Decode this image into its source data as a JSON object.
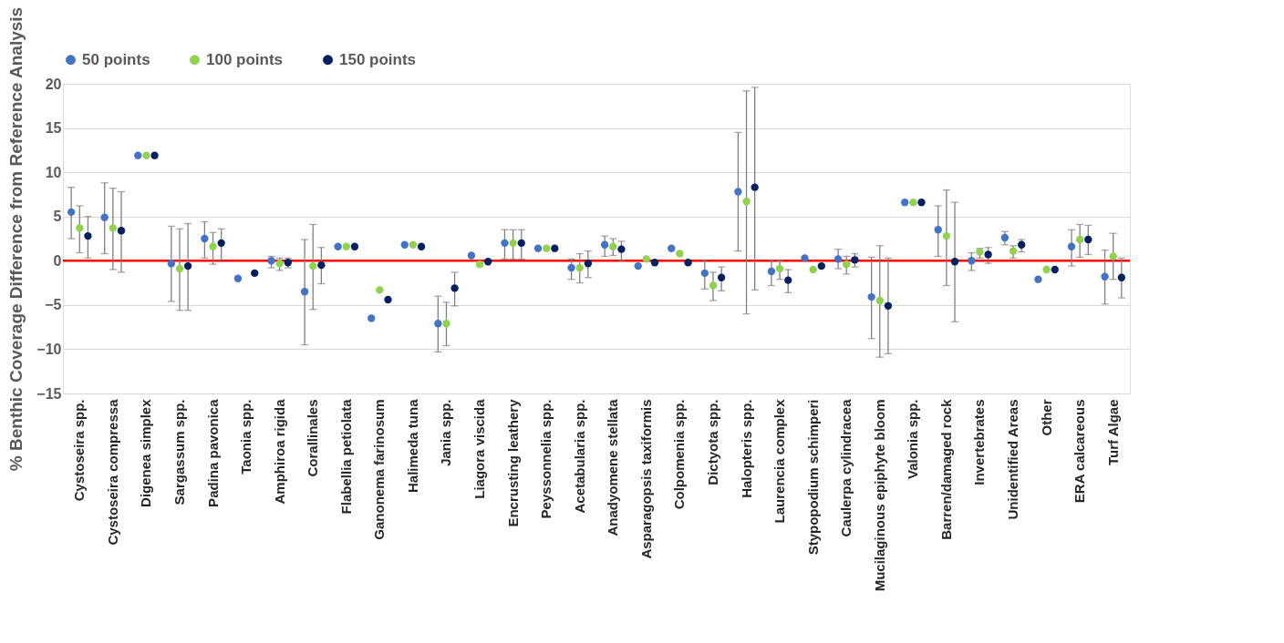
{
  "chart_data": {
    "type": "scatter",
    "ylabel": "% Benthic Coverage Difference from Reference Analysis",
    "categories": [
      "Cystoseira spp.",
      "Cystoseira compressa",
      "Digenea simplex",
      "Sargassum spp.",
      "Padina pavonica",
      "Taonia spp.",
      "Amphiroa rigida",
      "Corallinales",
      "Flabellia petiolata",
      "Ganonema farinosum",
      "Halimeda tuna",
      "Jania spp.",
      "Liagora viscida",
      "Encrusting leathery",
      "Peyssonnelia spp.",
      "Acetabularia spp.",
      "Anadyomene stellata",
      "Asparagopsis taxiformis",
      "Colpomenia spp.",
      "Dictyota spp.",
      "Halopteris spp.",
      "Laurencia complex",
      "Stypopodium schimperi",
      "Caulerpa cylindracea",
      "Mucilaginous epiphyte bloom",
      "Valonia spp.",
      "Barren/damaged rock",
      "Invertebrates",
      "Unidentified Areas",
      "Other",
      "ERA calcareous",
      "Turf Algae"
    ],
    "series": [
      {
        "name": "50 points",
        "color": "#4472c4",
        "values": [
          5.5,
          4.9,
          11.9,
          -0.3,
          2.5,
          -2.0,
          0.0,
          -3.5,
          1.6,
          -6.5,
          1.8,
          -7.1,
          0.6,
          2.0,
          1.4,
          -0.8,
          1.8,
          -0.6,
          1.4,
          -1.4,
          7.8,
          -1.2,
          0.3,
          0.2,
          -4.1,
          6.6,
          3.5,
          0.0,
          2.6,
          -2.1,
          1.6,
          -1.8
        ],
        "errors": [
          [
            2.5,
            8.3
          ],
          [
            0.8,
            8.8
          ],
          null,
          [
            -4.6,
            3.9
          ],
          [
            0.3,
            4.4
          ],
          null,
          [
            -0.8,
            0.5
          ],
          [
            -9.5,
            2.4
          ],
          null,
          null,
          null,
          [
            -10.3,
            -4.0
          ],
          null,
          [
            0.2,
            3.5
          ],
          null,
          [
            -2.1,
            0.2
          ],
          [
            0.5,
            2.8
          ],
          null,
          null,
          [
            -3.2,
            0.1
          ],
          [
            1.1,
            14.5
          ],
          [
            -2.8,
            0.1
          ],
          null,
          [
            -0.9,
            1.3
          ],
          [
            -8.8,
            0.4
          ],
          null,
          [
            0.5,
            6.2
          ],
          [
            -1.1,
            0.9
          ],
          [
            1.8,
            3.3
          ],
          null,
          [
            -0.6,
            3.5
          ],
          [
            -4.9,
            1.2
          ]
        ]
      },
      {
        "name": "100 points",
        "color": "#92d050",
        "values": [
          3.7,
          3.7,
          11.9,
          -0.9,
          1.6,
          null,
          -0.3,
          -0.6,
          1.6,
          -3.3,
          1.8,
          -7.1,
          -0.4,
          2.0,
          1.4,
          -0.8,
          1.6,
          0.2,
          0.8,
          -2.8,
          6.7,
          -0.9,
          -1.0,
          -0.4,
          -4.5,
          6.6,
          2.8,
          1.0,
          1.1,
          -1.0,
          2.4,
          0.5
        ],
        "errors": [
          [
            0.9,
            6.2
          ],
          [
            -1.0,
            8.2
          ],
          null,
          [
            -5.6,
            3.6
          ],
          [
            -0.4,
            3.2
          ],
          null,
          [
            -1.1,
            0.3
          ],
          [
            -5.5,
            4.1
          ],
          null,
          null,
          null,
          [
            -9.6,
            -4.7
          ],
          null,
          [
            0.2,
            3.5
          ],
          null,
          [
            -2.5,
            0.8
          ],
          [
            0.6,
            2.5
          ],
          null,
          null,
          [
            -4.5,
            -1.3
          ],
          [
            -6.0,
            19.2
          ],
          [
            -2.1,
            0.0
          ],
          null,
          [
            -1.5,
            0.5
          ],
          [
            -10.9,
            1.7
          ],
          null,
          [
            -2.8,
            8.0
          ],
          [
            0.3,
            1.4
          ],
          [
            0.3,
            1.7
          ],
          null,
          [
            0.4,
            4.1
          ],
          [
            -2.1,
            3.1
          ]
        ]
      },
      {
        "name": "150 points",
        "color": "#002060",
        "values": [
          2.8,
          3.4,
          11.9,
          -0.6,
          2.0,
          -1.4,
          -0.2,
          -0.5,
          1.6,
          -4.4,
          1.6,
          -3.1,
          -0.1,
          2.0,
          1.4,
          -0.3,
          1.3,
          -0.2,
          -0.2,
          -1.9,
          8.3,
          -2.2,
          -0.6,
          0.1,
          -5.1,
          6.6,
          -0.1,
          0.7,
          1.8,
          -1.0,
          2.4,
          -1.9
        ],
        "errors": [
          [
            0.3,
            5.0
          ],
          [
            -1.3,
            7.8
          ],
          null,
          [
            -5.6,
            4.2
          ],
          [
            0.1,
            3.6
          ],
          null,
          [
            -0.8,
            0.3
          ],
          [
            -2.6,
            1.5
          ],
          null,
          null,
          null,
          [
            -5.1,
            -1.3
          ],
          null,
          [
            0.2,
            3.5
          ],
          null,
          [
            -1.9,
            1.1
          ],
          [
            0.0,
            2.2
          ],
          null,
          null,
          [
            -3.4,
            -0.7
          ],
          [
            -3.3,
            19.6
          ],
          [
            -3.6,
            -1.0
          ],
          null,
          [
            -0.7,
            0.8
          ],
          [
            -10.5,
            0.3
          ],
          null,
          [
            -6.9,
            6.6
          ],
          [
            -0.3,
            1.5
          ],
          [
            1.0,
            2.4
          ],
          null,
          [
            0.7,
            4.0
          ],
          [
            -4.2,
            0.3
          ]
        ]
      }
    ],
    "ylim": [
      -15,
      20
    ],
    "yticks": [
      -15,
      -10,
      -5,
      0,
      5,
      10,
      15,
      20
    ],
    "grid": "y",
    "legend": "top",
    "marker": "circle",
    "ref_lines": [
      {
        "axis": "y",
        "value": 0,
        "color": "#ff0000",
        "line_style": "solid"
      }
    ]
  }
}
